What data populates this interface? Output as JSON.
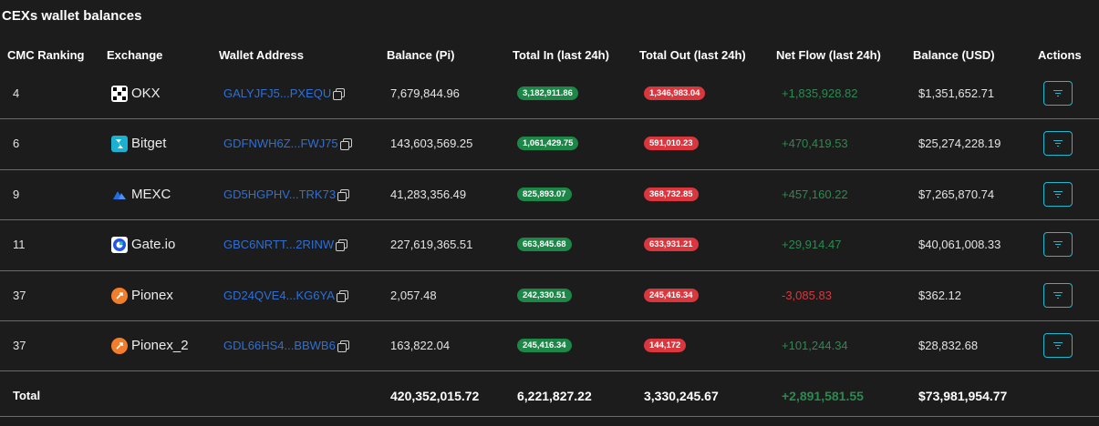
{
  "title": "CEXs wallet balances",
  "headers": {
    "rank": "CMC Ranking",
    "exchange": "Exchange",
    "wallet": "Wallet Address",
    "balance_pi": "Balance (Pi)",
    "total_in": "Total In (last 24h)",
    "total_out": "Total Out (last 24h)",
    "net_flow": "Net Flow (last 24h)",
    "balance_usd": "Balance (USD)",
    "actions": "Actions"
  },
  "rows": [
    {
      "rank": "4",
      "exchange": "OKX",
      "icon": "okx-logo-icon",
      "wallet": "GALYJFJ5...PXEQU",
      "balance_pi": "7,679,844.96",
      "total_in": "3,182,911.86",
      "total_out": "1,346,983.04",
      "net_flow": "+1,835,928.82",
      "net_sign": "pos",
      "balance_usd": "$1,351,652.71"
    },
    {
      "rank": "6",
      "exchange": "Bitget",
      "icon": "bitget-logo-icon",
      "wallet": "GDFNWH6Z...FWJ75",
      "balance_pi": "143,603,569.25",
      "total_in": "1,061,429.75",
      "total_out": "591,010.23",
      "net_flow": "+470,419.53",
      "net_sign": "pos",
      "balance_usd": "$25,274,228.19"
    },
    {
      "rank": "9",
      "exchange": "MEXC",
      "icon": "mexc-logo-icon",
      "wallet": "GD5HGPHV...TRK73",
      "balance_pi": "41,283,356.49",
      "total_in": "825,893.07",
      "total_out": "368,732.85",
      "net_flow": "+457,160.22",
      "net_sign": "pos",
      "balance_usd": "$7,265,870.74"
    },
    {
      "rank": "11",
      "exchange": "Gate.io",
      "icon": "gateio-logo-icon",
      "wallet": "GBC6NRTT...2RINW",
      "balance_pi": "227,619,365.51",
      "total_in": "663,845.68",
      "total_out": "633,931.21",
      "net_flow": "+29,914.47",
      "net_sign": "pos",
      "balance_usd": "$40,061,008.33"
    },
    {
      "rank": "37",
      "exchange": "Pionex",
      "icon": "pionex-logo-icon",
      "wallet": "GD24QVE4...KG6YA",
      "balance_pi": "2,057.48",
      "total_in": "242,330.51",
      "total_out": "245,416.34",
      "net_flow": "-3,085.83",
      "net_sign": "neg",
      "balance_usd": "$362.12"
    },
    {
      "rank": "37",
      "exchange": "Pionex_2",
      "icon": "pionex-logo-icon",
      "wallet": "GDL66HS4...BBWB6",
      "balance_pi": "163,822.04",
      "total_in": "245,416.34",
      "total_out": "144,172",
      "net_flow": "+101,244.34",
      "net_sign": "pos",
      "balance_usd": "$28,832.68"
    }
  ],
  "total": {
    "label": "Total",
    "balance_pi": "420,352,015.72",
    "total_in": "6,221,827.22",
    "total_out": "3,330,245.67",
    "net_flow": "+2,891,581.55",
    "balance_usd": "$73,981,954.77"
  },
  "colors": {
    "background": "#1c1c1c",
    "link": "#2f6fd3",
    "pill_green": "#1d8748",
    "pill_red": "#d9363e",
    "positive": "#2b8a4f",
    "negative": "#d6393f",
    "action_border": "#1fb8cf"
  }
}
